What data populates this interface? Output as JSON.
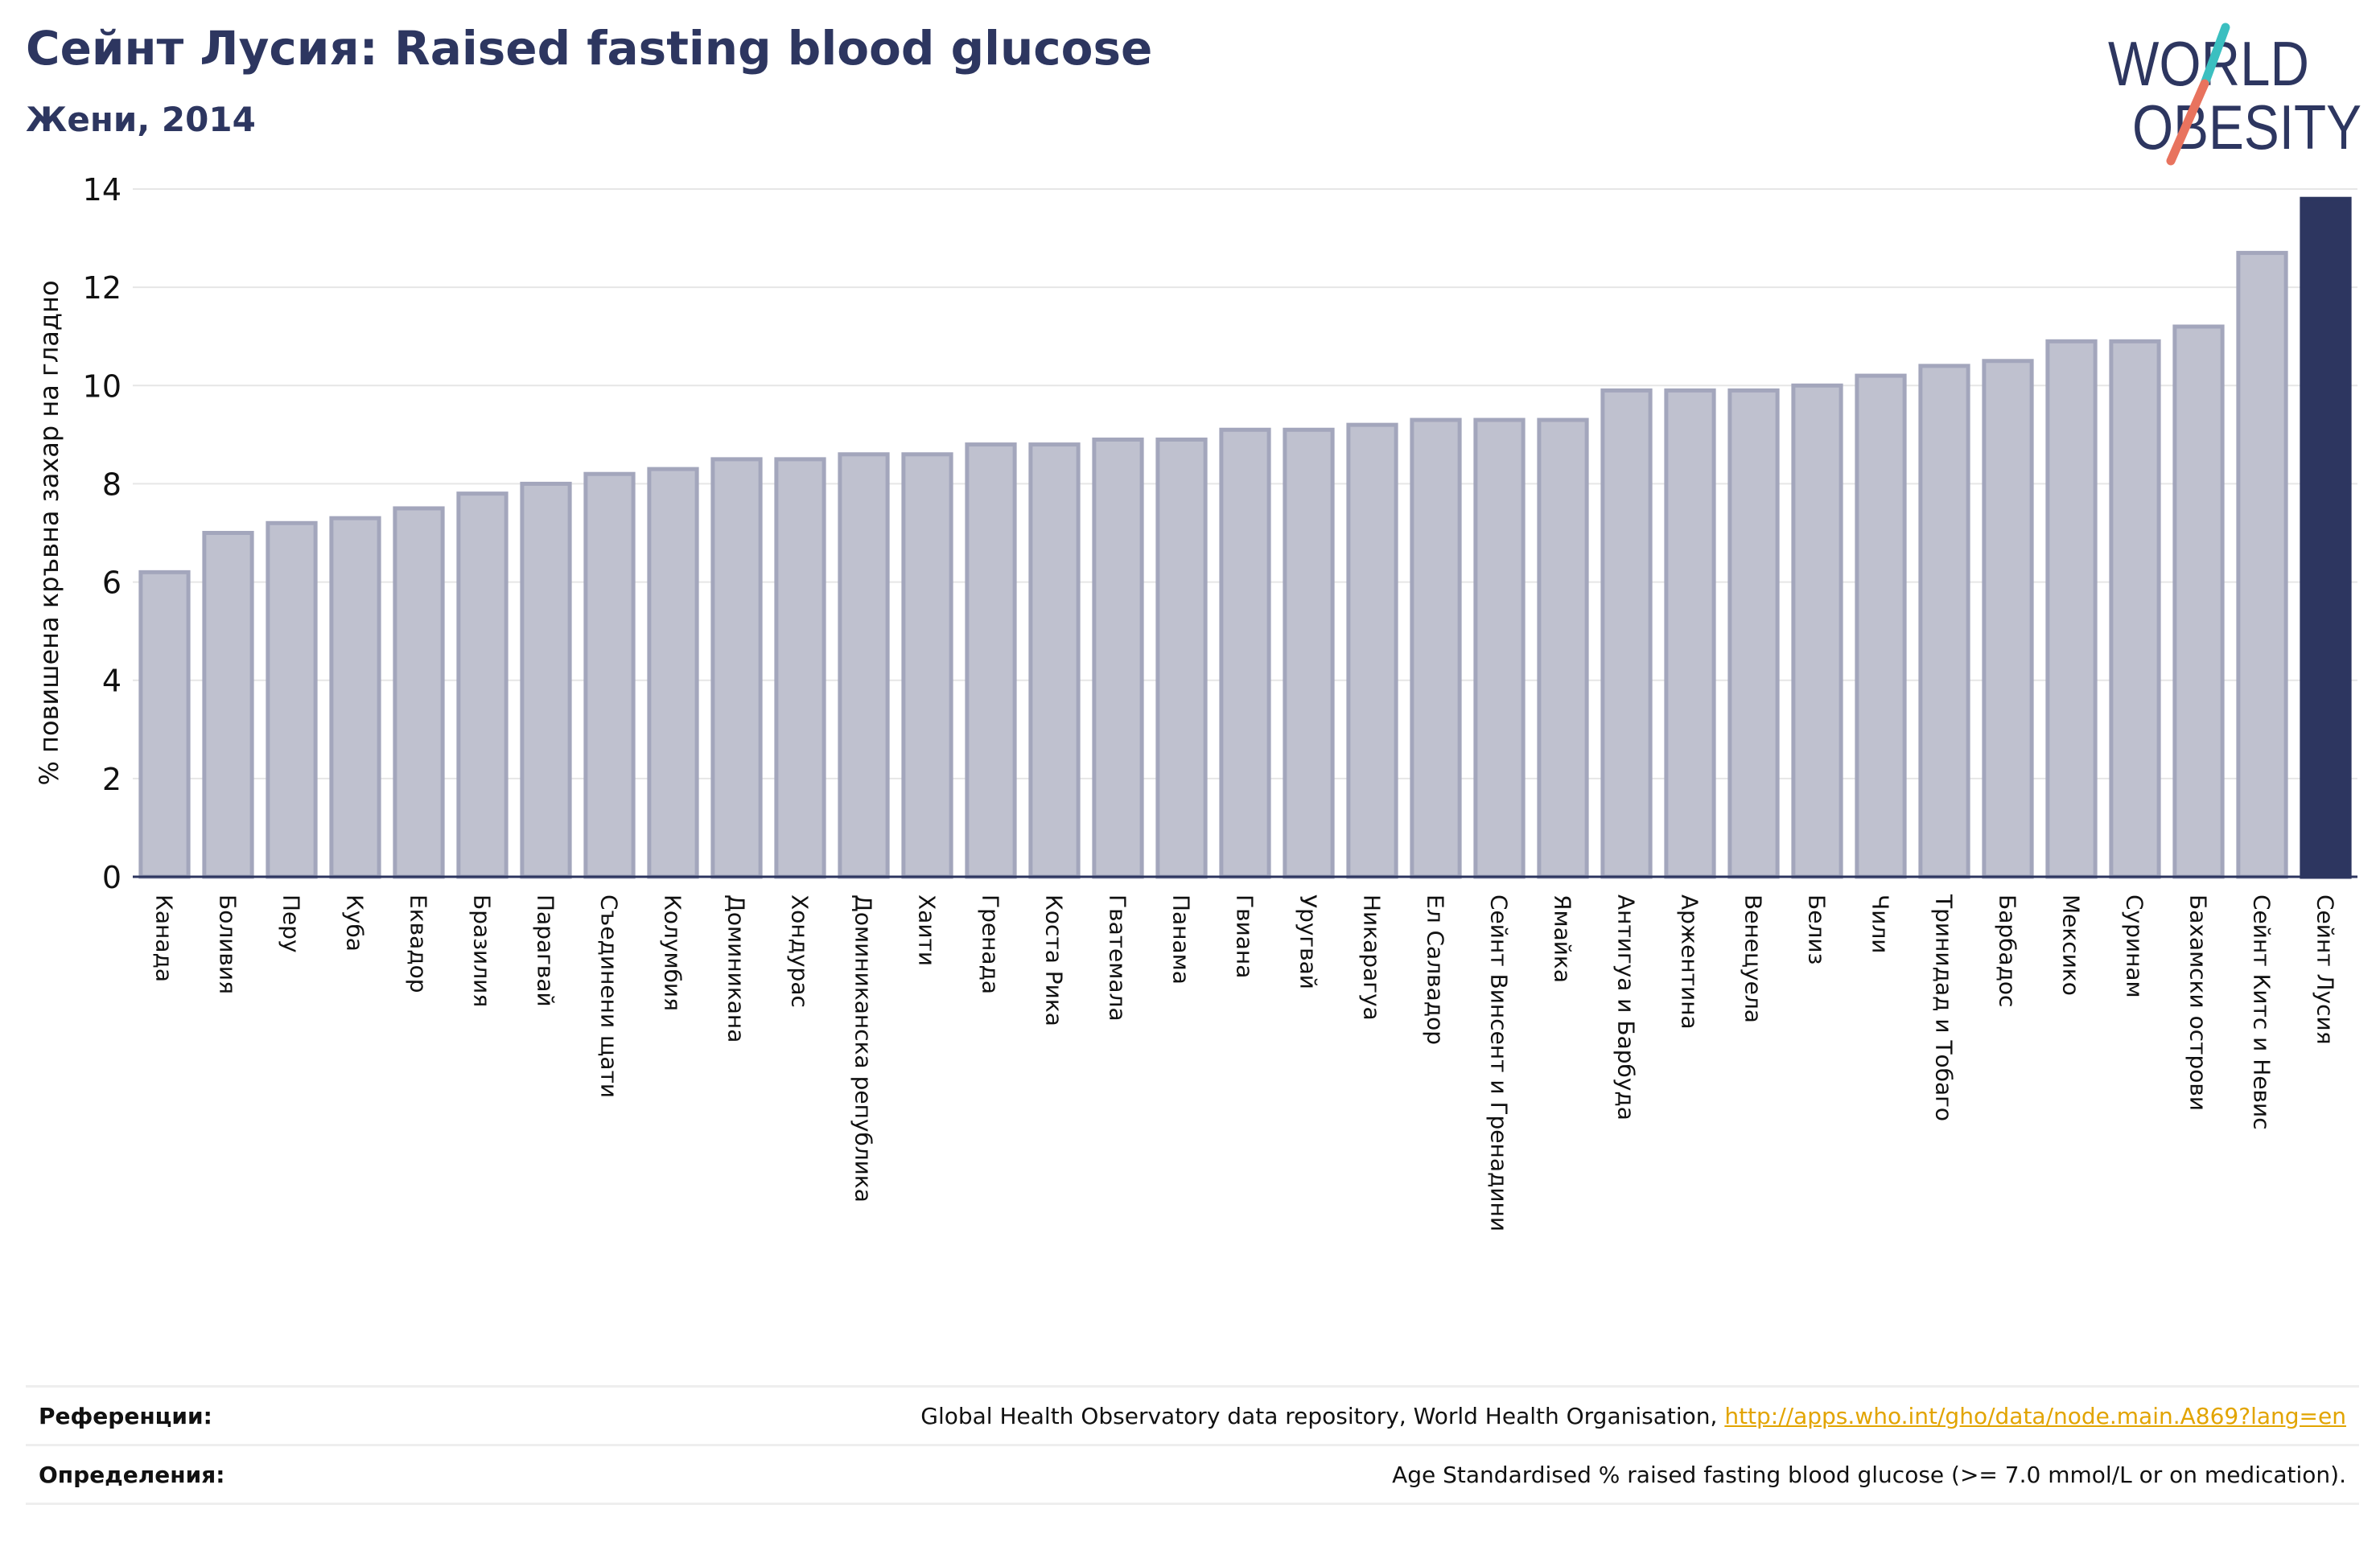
{
  "header": {
    "title": "Сейнт Лусия: Raised fasting blood glucose",
    "subtitle": "Жени, 2014"
  },
  "logo": {
    "line1": "WORLD",
    "line2": "OBESITY",
    "colors": {
      "text": "#2d3660",
      "slash_top": "#3bbfc0",
      "slash_bottom": "#e8735e"
    }
  },
  "chart_data": {
    "type": "bar",
    "ylabel": "% повишена кръвна захар на гладно",
    "ylim": [
      0,
      14
    ],
    "yticks": [
      0,
      2,
      4,
      6,
      8,
      10,
      12,
      14
    ],
    "grid": true,
    "highlight": "Сейнт Лусия",
    "colors": {
      "bar": "#bfc1cf",
      "bar_edge": "#a3a6bc",
      "highlight": "#2d3660"
    },
    "categories": [
      "Канада",
      "Боливия",
      "Перу",
      "Куба",
      "Еквадор",
      "Бразилия",
      "Парагвай",
      "Съединени щати",
      "Колумбия",
      "Доминикана",
      "Хондурас",
      "Доминиканска република",
      "Хаити",
      "Гренада",
      "Коста Рика",
      "Гватемала",
      "Панама",
      "Гвиана",
      "Уругвай",
      "Никарагуа",
      "Ел Салвадор",
      "Сейнт Винсент и Гренадини",
      "Ямайка",
      "Антигуа и Барбуда",
      "Аржентина",
      "Венецуела",
      "Белиз",
      "Чили",
      "Тринидад и Тобаго",
      "Барбадос",
      "Мексико",
      "Суринам",
      "Бахамски острови",
      "Сейнт Китс и Невис",
      "Сейнт Лусия"
    ],
    "values": [
      6.2,
      7.0,
      7.2,
      7.3,
      7.5,
      7.8,
      8.0,
      8.2,
      8.3,
      8.5,
      8.5,
      8.6,
      8.6,
      8.8,
      8.8,
      8.9,
      8.9,
      9.1,
      9.1,
      9.2,
      9.3,
      9.3,
      9.3,
      9.9,
      9.9,
      9.9,
      10.0,
      10.2,
      10.4,
      10.5,
      10.9,
      10.9,
      11.2,
      12.7,
      13.8
    ]
  },
  "footer": {
    "references_label": "Референции:",
    "references_text": "Global Health Observatory data repository, World Health Organisation, ",
    "references_link": "http://apps.who.int/gho/data/node.main.A869?lang=en",
    "definitions_label": "Определения:",
    "definitions_text": "Age Standardised % raised fasting blood glucose (>= 7.0 mmol/L or on medication)."
  }
}
